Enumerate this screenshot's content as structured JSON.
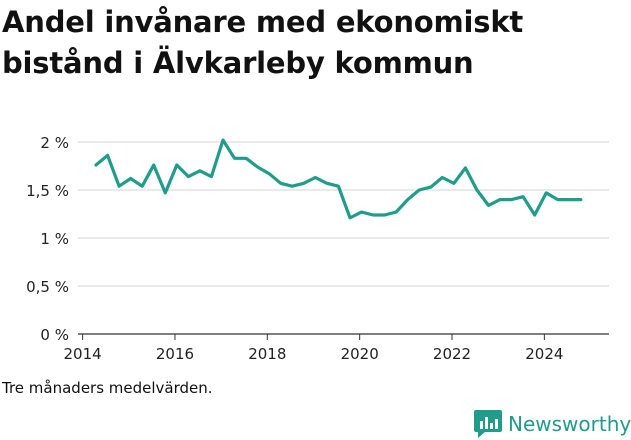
{
  "title": "Andel invånare med ekonomiskt bistånd i Älvkarleby kommun",
  "note": "Tre månaders medelvärden.",
  "brand": {
    "name": "Newsworthy",
    "icon": "newsworthy-logo-icon",
    "color": "#1f9d8a"
  },
  "chart_data": {
    "type": "line",
    "title": "Andel invånare med ekonomiskt bistånd i Älvkarleby kommun",
    "xlabel": "",
    "ylabel": "",
    "xlim": [
      2013.9,
      2025.4
    ],
    "ylim": [
      0,
      2
    ],
    "x_ticks": [
      2014,
      2016,
      2018,
      2020,
      2022,
      2024
    ],
    "x_tick_labels": [
      "2014",
      "2016",
      "2018",
      "2020",
      "2022",
      "2024"
    ],
    "y_ticks": [
      0,
      0.5,
      1,
      1.5,
      2
    ],
    "y_tick_labels": [
      "0 %",
      "0,5 %",
      "1 %",
      "1,5 %",
      "2 %"
    ],
    "grid": true,
    "line_color": "#1f9d8a",
    "series": [
      {
        "name": "Andel invånare med ekonomiskt bistånd",
        "x": [
          2014.29,
          2014.54,
          2014.79,
          2015.04,
          2015.29,
          2015.54,
          2015.79,
          2016.04,
          2016.29,
          2016.54,
          2016.79,
          2017.04,
          2017.29,
          2017.54,
          2017.79,
          2018.04,
          2018.29,
          2018.54,
          2018.79,
          2019.04,
          2019.29,
          2019.54,
          2019.79,
          2020.04,
          2020.29,
          2020.54,
          2020.79,
          2021.04,
          2021.29,
          2021.54,
          2021.79,
          2022.04,
          2022.29,
          2022.54,
          2022.79,
          2023.04,
          2023.29,
          2023.54,
          2023.79,
          2024.04,
          2024.29,
          2024.54,
          2024.79
        ],
        "values": [
          1.76,
          1.86,
          1.54,
          1.62,
          1.54,
          1.76,
          1.47,
          1.76,
          1.64,
          1.7,
          1.64,
          2.02,
          1.83,
          1.83,
          1.74,
          1.67,
          1.57,
          1.54,
          1.57,
          1.63,
          1.57,
          1.54,
          1.21,
          1.27,
          1.24,
          1.24,
          1.27,
          1.4,
          1.5,
          1.53,
          1.63,
          1.57,
          1.73,
          1.5,
          1.34,
          1.4,
          1.4,
          1.43,
          1.24,
          1.47,
          1.4,
          1.4,
          1.4
        ]
      }
    ]
  }
}
